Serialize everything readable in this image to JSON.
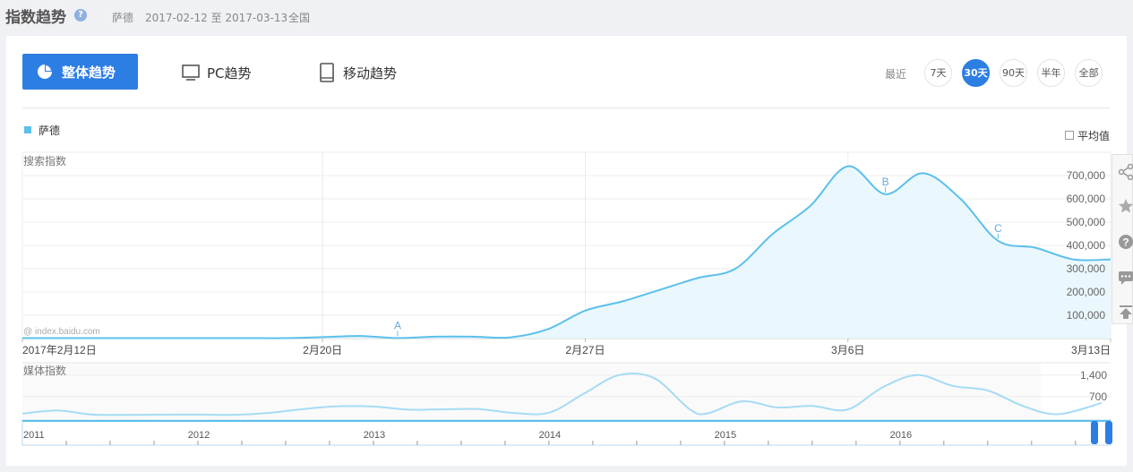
{
  "header": {
    "title": "指数趋势",
    "help": "?",
    "keyword": "萨德",
    "date_range": "2017-02-12 至 2017-03-13",
    "region": "全国"
  },
  "tabs": {
    "overall": "整体趋势",
    "pc": "PC趋势",
    "mobile": "移动趋势"
  },
  "range": {
    "label": "最近",
    "options": [
      "7天",
      "30天",
      "90天",
      "半年",
      "全部"
    ],
    "active": "30天"
  },
  "legend": {
    "name": "萨德",
    "color": "#5bc0eb"
  },
  "average_label": "平均值",
  "colors": {
    "accent": "#2d7ee3",
    "series": "#5bc0eb",
    "media": "#a6dbf4"
  },
  "chart_data": [
    {
      "type": "area",
      "ylabel": "搜索指数",
      "watermark": "@ index.baidu.com",
      "x_tick_labels": [
        "2017年2月12日",
        "2月20日",
        "2月27日",
        "3月6日",
        "3月13日"
      ],
      "y_tick_labels": [
        "100,000",
        "200,000",
        "300,000",
        "400,000",
        "500,000",
        "600,000",
        "700,000"
      ],
      "ylim": [
        0,
        800000
      ],
      "x": [
        "2017-02-12",
        "2017-02-13",
        "2017-02-14",
        "2017-02-15",
        "2017-02-16",
        "2017-02-17",
        "2017-02-18",
        "2017-02-19",
        "2017-02-20",
        "2017-02-21",
        "2017-02-22",
        "2017-02-23",
        "2017-02-24",
        "2017-02-25",
        "2017-02-26",
        "2017-02-27",
        "2017-02-28",
        "2017-03-01",
        "2017-03-02",
        "2017-03-03",
        "2017-03-04",
        "2017-03-05",
        "2017-03-06",
        "2017-03-07",
        "2017-03-08",
        "2017-03-09",
        "2017-03-10",
        "2017-03-11",
        "2017-03-12",
        "2017-03-13"
      ],
      "values": [
        2000,
        2000,
        2000,
        2000,
        2000,
        2000,
        2000,
        2000,
        6000,
        11000,
        2000,
        8000,
        8000,
        5000,
        40000,
        120000,
        160000,
        210000,
        260000,
        300000,
        450000,
        570000,
        740000,
        620000,
        710000,
        600000,
        420000,
        390000,
        340000,
        340000
      ],
      "annotations": [
        {
          "label": "A",
          "x": "2017-02-22"
        },
        {
          "label": "B",
          "x": "2017-03-07"
        },
        {
          "label": "C",
          "x": "2017-03-10"
        }
      ]
    },
    {
      "type": "line",
      "ylabel": "媒体指数",
      "y_tick_labels": [
        "700",
        "1,400"
      ],
      "ylim": [
        0,
        1800
      ],
      "x_tick_labels": [
        "2011",
        "2012",
        "2013",
        "2014",
        "2015",
        "2016"
      ],
      "x": [
        2011.0,
        2011.2,
        2011.4,
        2011.6,
        2011.8,
        2012.0,
        2012.2,
        2012.4,
        2012.6,
        2012.8,
        2013.0,
        2013.2,
        2013.4,
        2013.6,
        2013.8,
        2014.0,
        2014.2,
        2014.4,
        2014.6,
        2014.8,
        2014.9,
        2015.1,
        2015.3,
        2015.5,
        2015.7,
        2015.9,
        2016.1,
        2016.3,
        2016.5,
        2016.7,
        2016.9,
        2017.15
      ],
      "values": [
        150,
        250,
        120,
        110,
        115,
        120,
        110,
        170,
        300,
        390,
        380,
        280,
        290,
        300,
        170,
        180,
        800,
        1400,
        1300,
        300,
        150,
        550,
        350,
        400,
        280,
        1000,
        1400,
        1050,
        900,
        400,
        130,
        500
      ]
    }
  ]
}
